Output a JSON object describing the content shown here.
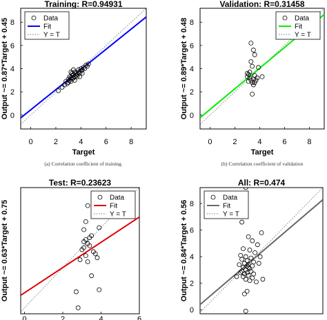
{
  "chart_data": [
    {
      "type": "scatter",
      "title": "Training: R=0.94931",
      "xlabel": "Target",
      "ylabel": "Output ~= 0.87*Target + 0.45",
      "caption": "(a) Correlation coefficient of training.",
      "xlim": [
        -0.8,
        9.2
      ],
      "ylim": [
        -1.2,
        9.2
      ],
      "xticks": [
        "0",
        "2",
        "4",
        "6",
        "8"
      ],
      "yticks": [
        "0",
        "2",
        "4",
        "6",
        "8"
      ],
      "fit": {
        "slope": 0.87,
        "intercept": 0.45,
        "color": "#0000ff"
      },
      "legend": {
        "data": "Data",
        "fit": "Fit",
        "ident": "Y = T"
      },
      "points": [
        [
          2.2,
          2.1
        ],
        [
          2.5,
          2.4
        ],
        [
          2.7,
          2.6
        ],
        [
          2.8,
          2.9
        ],
        [
          2.9,
          2.7
        ],
        [
          3.0,
          3.1
        ],
        [
          3.0,
          2.8
        ],
        [
          3.1,
          3.3
        ],
        [
          3.1,
          3.0
        ],
        [
          3.2,
          3.2
        ],
        [
          3.2,
          2.9
        ],
        [
          3.3,
          3.4
        ],
        [
          3.3,
          3.1
        ],
        [
          3.3,
          3.6
        ],
        [
          3.4,
          3.2
        ],
        [
          3.4,
          3.5
        ],
        [
          3.5,
          3.3
        ],
        [
          3.5,
          3.7
        ],
        [
          3.5,
          3.0
        ],
        [
          3.6,
          3.4
        ],
        [
          3.6,
          3.6
        ],
        [
          3.7,
          3.5
        ],
        [
          3.7,
          3.3
        ],
        [
          3.8,
          3.7
        ],
        [
          3.8,
          3.9
        ],
        [
          3.9,
          3.6
        ],
        [
          4.0,
          3.8
        ],
        [
          4.0,
          4.0
        ],
        [
          4.1,
          3.9
        ],
        [
          4.2,
          4.1
        ],
        [
          4.3,
          4.0
        ],
        [
          4.4,
          4.3
        ],
        [
          4.5,
          4.2
        ],
        [
          4.6,
          4.4
        ],
        [
          3.4,
          3.9
        ],
        [
          3.2,
          3.7
        ],
        [
          3.9,
          3.3
        ],
        [
          4.1,
          3.6
        ]
      ]
    },
    {
      "type": "scatter",
      "title": "Validation: R=0.31458",
      "xlabel": "Target",
      "ylabel": "Output ~= 0.89*Target + 0.48",
      "caption": "(b) Correlation coefficient of validation",
      "xlim": [
        -0.8,
        9.2
      ],
      "ylim": [
        -1.2,
        9.2
      ],
      "xticks": [
        "0",
        "2",
        "4",
        "6",
        "8"
      ],
      "yticks": [
        "0",
        "2",
        "4",
        "6",
        "8"
      ],
      "fit": {
        "slope": 0.89,
        "intercept": 0.48,
        "color": "#00ee00"
      },
      "legend": {
        "data": "Data",
        "fit": "Fit",
        "ident": "Y = T"
      },
      "points": [
        [
          3.3,
          6.2
        ],
        [
          3.5,
          5.6
        ],
        [
          3.6,
          5.2
        ],
        [
          3.3,
          4.6
        ],
        [
          3.4,
          4.2
        ],
        [
          3.9,
          4.1
        ],
        [
          3.2,
          3.7
        ],
        [
          3.1,
          3.5
        ],
        [
          3.0,
          3.3
        ],
        [
          3.2,
          3.2
        ],
        [
          3.3,
          3.0
        ],
        [
          3.4,
          2.8
        ],
        [
          3.5,
          3.1
        ],
        [
          3.6,
          3.4
        ],
        [
          3.7,
          3.0
        ],
        [
          3.1,
          2.9
        ],
        [
          3.5,
          2.6
        ],
        [
          3.8,
          3.2
        ],
        [
          4.2,
          3.3
        ],
        [
          3.4,
          1.8
        ],
        [
          3.0,
          3.6
        ],
        [
          3.6,
          2.8
        ]
      ]
    },
    {
      "type": "scatter",
      "title": "Test: R=0.23623",
      "xlabel": "",
      "ylabel": "Output ~= 0.63*Target + 0.75",
      "caption": "",
      "xlim": [
        -0.2,
        6.0
      ],
      "ylim": [
        -0.3,
        6.0
      ],
      "xticks": [
        "0",
        "2",
        "4",
        "6"
      ],
      "yticks": [],
      "fit": {
        "slope": 0.63,
        "intercept": 0.75,
        "color": "#dd0000"
      },
      "legend": {
        "data": "Data",
        "fit": "Fit",
        "ident": "Y = T"
      },
      "points": [
        [
          3.3,
          5.1
        ],
        [
          4.5,
          4.8
        ],
        [
          3.2,
          4.3
        ],
        [
          3.9,
          4.0
        ],
        [
          3.1,
          3.9
        ],
        [
          3.5,
          3.6
        ],
        [
          3.2,
          3.4
        ],
        [
          3.3,
          3.2
        ],
        [
          3.4,
          3.1
        ],
        [
          3.1,
          3.0
        ],
        [
          3.0,
          2.9
        ],
        [
          3.6,
          2.8
        ],
        [
          3.7,
          2.7
        ],
        [
          3.2,
          2.6
        ],
        [
          3.3,
          2.3
        ],
        [
          2.9,
          2.4
        ],
        [
          3.8,
          2.5
        ],
        [
          3.5,
          1.6
        ],
        [
          3.9,
          0.9
        ],
        [
          2.7,
          0.8
        ],
        [
          2.8,
          0.0
        ],
        [
          3.4,
          3.5
        ],
        [
          3.1,
          3.3
        ]
      ]
    },
    {
      "type": "scatter",
      "title": "All: R=0.474",
      "xlabel": "",
      "ylabel": "Output ~= 0.84*Target + 0.56",
      "caption": "",
      "xlim": [
        -0.2,
        9.2
      ],
      "ylim": [
        -0.3,
        9.2
      ],
      "xticks": [],
      "yticks": [
        "0",
        "2",
        "4",
        "6",
        "8"
      ],
      "fit": {
        "slope": 0.84,
        "intercept": 0.56,
        "color": "#666666"
      },
      "legend": {
        "data": "Data",
        "fit": "Fit",
        "ident": "Y = T"
      },
      "points": [
        [
          3.3,
          9.2
        ],
        [
          3.0,
          6.6
        ],
        [
          4.5,
          5.8
        ],
        [
          3.5,
          5.5
        ],
        [
          3.8,
          5.2
        ],
        [
          4.2,
          4.9
        ],
        [
          3.1,
          4.6
        ],
        [
          3.6,
          4.5
        ],
        [
          4.0,
          4.3
        ],
        [
          2.9,
          4.1
        ],
        [
          3.3,
          4.0
        ],
        [
          3.7,
          3.9
        ],
        [
          3.0,
          3.8
        ],
        [
          3.4,
          3.7
        ],
        [
          3.9,
          3.6
        ],
        [
          3.2,
          3.5
        ],
        [
          3.5,
          3.4
        ],
        [
          3.8,
          3.3
        ],
        [
          3.1,
          3.2
        ],
        [
          3.6,
          3.1
        ],
        [
          3.3,
          3.0
        ],
        [
          3.0,
          2.9
        ],
        [
          3.7,
          2.9
        ],
        [
          3.4,
          2.8
        ],
        [
          3.2,
          2.7
        ],
        [
          3.9,
          2.7
        ],
        [
          3.5,
          2.6
        ],
        [
          3.1,
          2.5
        ],
        [
          3.8,
          2.4
        ],
        [
          3.3,
          2.3
        ],
        [
          3.6,
          2.2
        ],
        [
          4.1,
          2.1
        ],
        [
          2.8,
          3.4
        ],
        [
          2.9,
          2.8
        ],
        [
          4.3,
          3.5
        ],
        [
          4.4,
          4.0
        ],
        [
          3.4,
          1.4
        ],
        [
          3.2,
          1.2
        ],
        [
          4.6,
          2.3
        ],
        [
          2.6,
          2.5
        ],
        [
          3.3,
          -0.1
        ],
        [
          3.5,
          3.2
        ],
        [
          3.4,
          3.3
        ]
      ]
    }
  ]
}
